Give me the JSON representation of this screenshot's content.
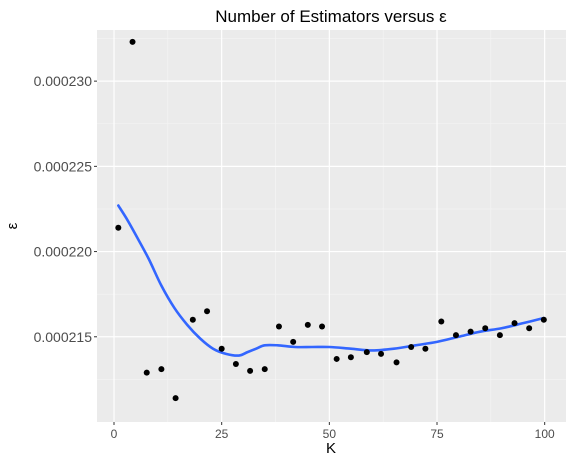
{
  "chart_data": {
    "type": "scatter",
    "title": "Number of Estimators versus ε",
    "xlabel": "K",
    "ylabel": "ε",
    "xlim": [
      -3.95,
      104.95
    ],
    "ylim": [
      0.00021,
      0.000233
    ],
    "x_ticks": [
      0,
      25,
      50,
      75,
      100
    ],
    "x_tick_labels": [
      "0",
      "25",
      "50",
      "75",
      "100"
    ],
    "y_ticks": [
      0.000215,
      0.00022,
      0.000225,
      0.00023
    ],
    "y_tick_labels": [
      "0.000215",
      "0.000220",
      "0.000225",
      "0.000230"
    ],
    "grid": true,
    "points": [
      {
        "x": 1,
        "y": 0.0002214
      },
      {
        "x": 4.3,
        "y": 0.0002323
      },
      {
        "x": 7.6,
        "y": 0.0002129
      },
      {
        "x": 11,
        "y": 0.0002131
      },
      {
        "x": 14.3,
        "y": 0.0002114
      },
      {
        "x": 18.3,
        "y": 0.000216
      },
      {
        "x": 21.6,
        "y": 0.0002165
      },
      {
        "x": 25,
        "y": 0.0002143
      },
      {
        "x": 28.3,
        "y": 0.0002134
      },
      {
        "x": 31.6,
        "y": 0.000213
      },
      {
        "x": 35,
        "y": 0.0002131
      },
      {
        "x": 38.3,
        "y": 0.0002156
      },
      {
        "x": 41.6,
        "y": 0.0002147
      },
      {
        "x": 45,
        "y": 0.0002157
      },
      {
        "x": 48.3,
        "y": 0.0002156
      },
      {
        "x": 51.7,
        "y": 0.0002137
      },
      {
        "x": 55,
        "y": 0.0002138
      },
      {
        "x": 58.7,
        "y": 0.0002141
      },
      {
        "x": 62,
        "y": 0.000214
      },
      {
        "x": 65.6,
        "y": 0.0002135
      },
      {
        "x": 69,
        "y": 0.0002144
      },
      {
        "x": 72.3,
        "y": 0.0002143
      },
      {
        "x": 76,
        "y": 0.0002159
      },
      {
        "x": 79.4,
        "y": 0.0002151
      },
      {
        "x": 82.8,
        "y": 0.0002153
      },
      {
        "x": 86.2,
        "y": 0.0002155
      },
      {
        "x": 89.6,
        "y": 0.0002151
      },
      {
        "x": 93,
        "y": 0.0002158
      },
      {
        "x": 96.4,
        "y": 0.0002155
      },
      {
        "x": 99.8,
        "y": 0.000216
      }
    ],
    "smooth_line": [
      {
        "x": 1,
        "y": 0.0002227
      },
      {
        "x": 3,
        "y": 0.0002219
      },
      {
        "x": 5,
        "y": 0.000221
      },
      {
        "x": 8,
        "y": 0.0002196
      },
      {
        "x": 11,
        "y": 0.000218
      },
      {
        "x": 14,
        "y": 0.0002167
      },
      {
        "x": 17,
        "y": 0.0002157
      },
      {
        "x": 20,
        "y": 0.0002149
      },
      {
        "x": 23,
        "y": 0.0002143
      },
      {
        "x": 26,
        "y": 0.000214
      },
      {
        "x": 29,
        "y": 0.0002139
      },
      {
        "x": 31,
        "y": 0.0002141
      },
      {
        "x": 33,
        "y": 0.0002143
      },
      {
        "x": 35,
        "y": 0.0002145
      },
      {
        "x": 38,
        "y": 0.0002145
      },
      {
        "x": 42,
        "y": 0.0002144
      },
      {
        "x": 46,
        "y": 0.0002144
      },
      {
        "x": 50,
        "y": 0.0002144
      },
      {
        "x": 55,
        "y": 0.0002143
      },
      {
        "x": 60,
        "y": 0.0002142
      },
      {
        "x": 65,
        "y": 0.0002143
      },
      {
        "x": 70,
        "y": 0.0002145
      },
      {
        "x": 75,
        "y": 0.0002147
      },
      {
        "x": 80,
        "y": 0.000215
      },
      {
        "x": 85,
        "y": 0.0002153
      },
      {
        "x": 90,
        "y": 0.0002155
      },
      {
        "x": 95,
        "y": 0.0002158
      },
      {
        "x": 99.8,
        "y": 0.0002161
      }
    ],
    "colors": {
      "panel": "#ebebeb",
      "grid_major": "#ffffff",
      "grid_minor": "#f5f5f5",
      "point": "#000000",
      "line": "#3366ff",
      "tick": "#333333"
    }
  }
}
